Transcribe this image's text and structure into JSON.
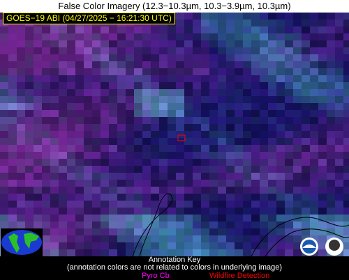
{
  "title": "False Color Imagery (12.3−10.3µm, 10.3−3.9µm, 10.3µm)",
  "timestamp": "GOES−19 ABI (04/27/2025 − 16:21:30 UTC)",
  "annotation_key": {
    "title": "Annotation Key",
    "note": "(annotation colors are not related to colors in underlying image)",
    "items": [
      "Pyro Cb",
      "Wildfire Detection"
    ]
  }
}
